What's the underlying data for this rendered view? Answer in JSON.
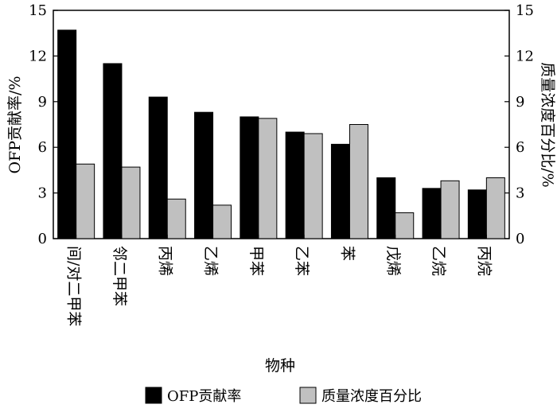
{
  "chart_data": {
    "type": "bar",
    "xlabel": "物种",
    "ylabel_left": "OFP贡献率/%",
    "ylabel_right": "质量浓度百分比/%",
    "ylim": [
      0,
      15
    ],
    "yticks": [
      "0",
      "3",
      "6",
      "9",
      "12",
      "15"
    ],
    "grid": false,
    "legend_position": "bottom",
    "categories": [
      "间/对二甲苯",
      "邻二甲苯",
      "丙烯",
      "乙烯",
      "甲苯",
      "乙苯",
      "苯",
      "戊烯",
      "乙烷",
      "丙烷"
    ],
    "series": [
      {
        "name": "OFP贡献率",
        "color": "#000000",
        "values": [
          13.7,
          11.5,
          9.3,
          8.3,
          8.0,
          7.0,
          6.2,
          4.0,
          3.3,
          3.2
        ]
      },
      {
        "name": "质量浓度百分比",
        "color": "#c0c0c0",
        "values": [
          4.9,
          4.7,
          2.6,
          2.2,
          7.9,
          6.9,
          7.5,
          1.7,
          3.8,
          4.0
        ]
      }
    ]
  }
}
